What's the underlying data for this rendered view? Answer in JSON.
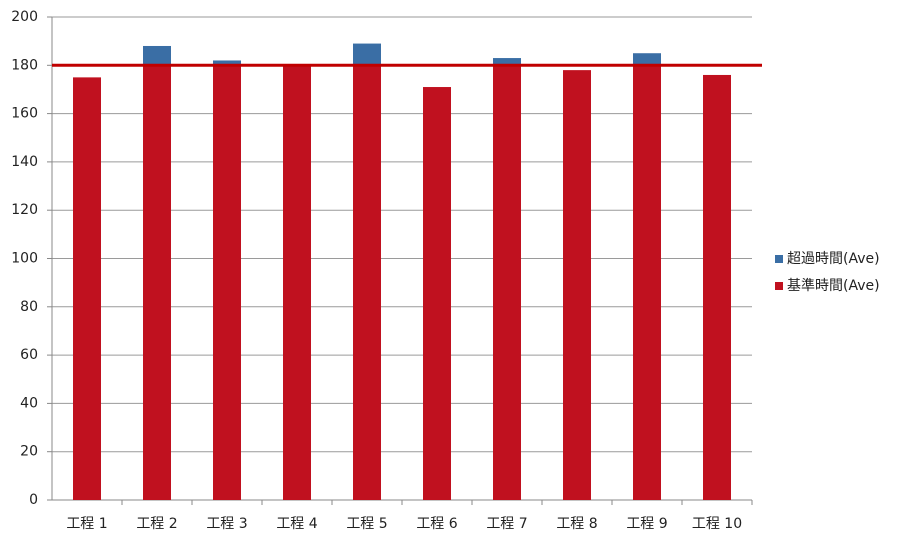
{
  "chart_data": {
    "type": "stacked_bar",
    "categories": [
      "工程 1",
      "工程 2",
      "工程 3",
      "工程 4",
      "工程 5",
      "工程 6",
      "工程 7",
      "工程 8",
      "工程 9",
      "工程 10"
    ],
    "series": [
      {
        "name": "基準時間(Ave)",
        "color": "#c0111f",
        "values": [
          175,
          180,
          180,
          180,
          180,
          171,
          180,
          178,
          180,
          176
        ]
      },
      {
        "name": "超過時間(Ave)",
        "color": "#3a6ea5",
        "values": [
          0,
          8,
          2,
          0,
          9,
          0,
          3,
          0,
          5,
          0
        ]
      }
    ],
    "threshold": 180,
    "threshold_color": "#c00000",
    "ylim": [
      0,
      200
    ],
    "yticks": [
      0,
      20,
      40,
      60,
      80,
      100,
      120,
      140,
      160,
      180,
      200
    ],
    "grid": true
  }
}
